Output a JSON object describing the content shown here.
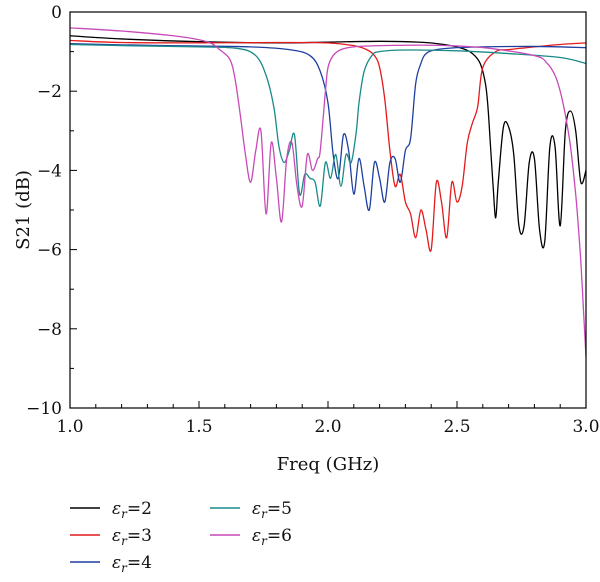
{
  "chart_data": {
    "type": "line",
    "title": "",
    "xlabel": "Freq (GHz)",
    "ylabel": "S21 (dB)",
    "xlim": [
      1.0,
      3.0
    ],
    "ylim": [
      -10,
      0
    ],
    "xticks": [
      "1.0",
      "1.5",
      "2.0",
      "2.5",
      "3.0"
    ],
    "yticks": [
      "0",
      "−2",
      "−4",
      "−6",
      "−8",
      "−10"
    ],
    "grid": false,
    "legend_position": "bottom-left",
    "series": [
      {
        "name": "εr=2",
        "legend_base": "ε",
        "legend_sub": "r",
        "legend_value": "=2",
        "color": "#000000",
        "x": [
          1.0,
          1.2,
          1.5,
          1.8,
          2.0,
          2.2,
          2.35,
          2.45,
          2.52,
          2.56,
          2.59,
          2.61,
          2.62,
          2.63,
          2.64,
          2.65,
          2.66,
          2.68,
          2.7,
          2.72,
          2.74,
          2.76,
          2.78,
          2.8,
          2.82,
          2.84,
          2.86,
          2.88,
          2.9,
          2.92,
          2.94,
          2.96,
          2.98,
          3.0
        ],
        "y": [
          -0.6,
          -0.68,
          -0.75,
          -0.78,
          -0.76,
          -0.74,
          -0.76,
          -0.82,
          -0.92,
          -1.05,
          -1.3,
          -1.8,
          -2.4,
          -3.4,
          -4.4,
          -5.2,
          -4.3,
          -2.9,
          -2.9,
          -3.6,
          -5.4,
          -5.4,
          -3.8,
          -3.7,
          -5.5,
          -5.8,
          -3.4,
          -3.4,
          -5.4,
          -3.0,
          -2.5,
          -3.0,
          -4.3,
          -4.0
        ]
      },
      {
        "name": "εr=3",
        "legend_base": "ε",
        "legend_sub": "r",
        "legend_value": "=3",
        "color": "#e41a1c",
        "x": [
          1.0,
          1.2,
          1.5,
          1.8,
          2.0,
          2.1,
          2.15,
          2.18,
          2.2,
          2.22,
          2.24,
          2.26,
          2.28,
          2.3,
          2.32,
          2.34,
          2.36,
          2.38,
          2.4,
          2.42,
          2.44,
          2.46,
          2.48,
          2.5,
          2.52,
          2.54,
          2.56,
          2.58,
          2.6,
          2.65,
          2.7,
          2.8,
          2.9,
          3.0
        ],
        "y": [
          -0.72,
          -0.77,
          -0.78,
          -0.77,
          -0.78,
          -0.85,
          -0.95,
          -1.1,
          -1.4,
          -2.2,
          -3.5,
          -4.4,
          -4.1,
          -4.8,
          -5.1,
          -5.7,
          -5.0,
          -5.5,
          -6.0,
          -4.3,
          -4.8,
          -5.7,
          -4.3,
          -4.8,
          -4.4,
          -3.3,
          -2.8,
          -2.4,
          -1.4,
          -1.0,
          -0.95,
          -0.88,
          -0.82,
          -0.78
        ]
      },
      {
        "name": "εr=4",
        "legend_base": "ε",
        "legend_sub": "r",
        "legend_value": "=4",
        "color": "#1f3f9f",
        "x": [
          1.0,
          1.2,
          1.5,
          1.7,
          1.85,
          1.93,
          1.97,
          2.0,
          2.02,
          2.04,
          2.06,
          2.08,
          2.1,
          2.12,
          2.14,
          2.16,
          2.18,
          2.2,
          2.22,
          2.24,
          2.26,
          2.28,
          2.3,
          2.32,
          2.34,
          2.36,
          2.38,
          2.42,
          2.5,
          2.6,
          2.8,
          3.0
        ],
        "y": [
          -0.8,
          -0.83,
          -0.86,
          -0.88,
          -0.95,
          -1.1,
          -1.5,
          -2.3,
          -3.6,
          -4.2,
          -3.1,
          -3.5,
          -4.6,
          -3.7,
          -4.4,
          -5.0,
          -3.8,
          -4.2,
          -4.8,
          -3.8,
          -3.7,
          -4.3,
          -3.5,
          -3.2,
          -1.8,
          -1.3,
          -1.05,
          -0.95,
          -0.9,
          -0.88,
          -0.87,
          -0.9
        ]
      },
      {
        "name": "εr=5",
        "legend_base": "ε",
        "legend_sub": "r",
        "legend_value": "=5",
        "color": "#1a8a88",
        "x": [
          1.0,
          1.2,
          1.5,
          1.65,
          1.72,
          1.76,
          1.79,
          1.81,
          1.83,
          1.85,
          1.87,
          1.89,
          1.91,
          1.93,
          1.95,
          1.97,
          1.99,
          2.01,
          2.03,
          2.05,
          2.07,
          2.09,
          2.11,
          2.12,
          2.14,
          2.17,
          2.2,
          2.3,
          2.5,
          2.7,
          2.9,
          3.0
        ],
        "y": [
          -0.82,
          -0.85,
          -0.88,
          -0.92,
          -1.1,
          -1.6,
          -2.4,
          -3.4,
          -3.8,
          -3.5,
          -3.1,
          -4.6,
          -4.1,
          -4.2,
          -4.3,
          -4.9,
          -3.8,
          -4.2,
          -3.6,
          -4.4,
          -3.6,
          -3.8,
          -3.0,
          -2.3,
          -1.5,
          -1.1,
          -1.0,
          -0.96,
          -0.98,
          -1.05,
          -1.15,
          -1.3
        ]
      },
      {
        "name": "εr=6",
        "legend_base": "ε",
        "legend_sub": "r",
        "legend_value": "=6",
        "color": "#c849b8",
        "x": [
          1.0,
          1.2,
          1.4,
          1.5,
          1.55,
          1.58,
          1.62,
          1.64,
          1.66,
          1.68,
          1.7,
          1.72,
          1.74,
          1.76,
          1.78,
          1.8,
          1.82,
          1.84,
          1.86,
          1.88,
          1.9,
          1.92,
          1.94,
          1.96,
          1.97,
          1.99,
          2.0,
          2.02,
          2.05,
          2.1,
          2.2,
          2.4,
          2.6,
          2.8,
          2.85,
          2.88,
          2.9,
          2.92,
          2.94,
          2.96,
          2.97,
          2.98,
          2.99,
          3.0
        ],
        "y": [
          -0.4,
          -0.48,
          -0.6,
          -0.7,
          -0.8,
          -0.95,
          -1.2,
          -1.7,
          -2.6,
          -3.6,
          -4.3,
          -3.5,
          -3.0,
          -5.1,
          -3.3,
          -4.2,
          -5.3,
          -3.7,
          -3.3,
          -4.4,
          -4.9,
          -3.6,
          -4.0,
          -3.7,
          -3.5,
          -2.0,
          -1.4,
          -1.1,
          -0.95,
          -0.88,
          -0.85,
          -0.84,
          -0.9,
          -1.1,
          -1.3,
          -1.6,
          -2.0,
          -2.6,
          -3.4,
          -4.6,
          -5.4,
          -6.3,
          -7.5,
          -8.7
        ]
      }
    ]
  }
}
